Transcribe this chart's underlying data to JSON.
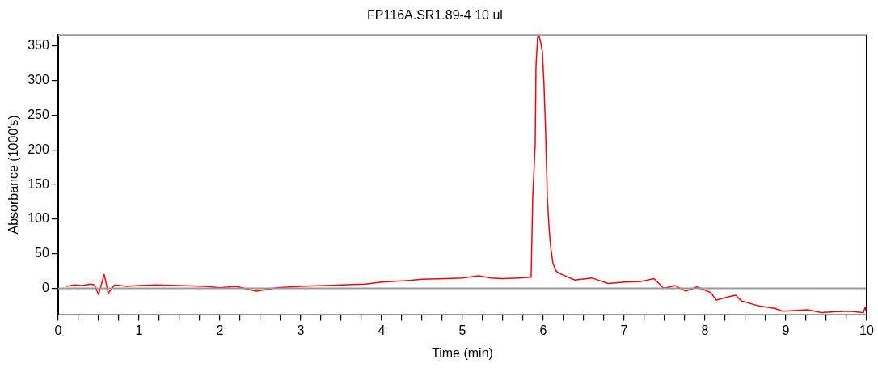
{
  "chart_data": {
    "type": "line",
    "title": "FP116A.SR1.89-4 10 ul",
    "xlabel": "Time (min)",
    "ylabel": "Absorbance (1000's)",
    "xlim": [
      0,
      10
    ],
    "ylim": [
      -37.5,
      366
    ],
    "xticks": [
      0,
      {
        "value": 0.25,
        "label": null
      },
      {
        "value": 0.5,
        "label": null
      },
      {
        "value": 0.75,
        "label": null
      },
      1,
      {
        "value": 1.25,
        "label": null
      },
      {
        "value": 1.5,
        "label": null
      },
      {
        "value": 1.75,
        "label": null
      },
      2,
      {
        "value": 2.25,
        "label": null
      },
      {
        "value": 2.5,
        "label": null
      },
      {
        "value": 2.75,
        "label": null
      },
      3,
      {
        "value": 3.25,
        "label": null
      },
      {
        "value": 3.5,
        "label": null
      },
      {
        "value": 3.75,
        "label": null
      },
      4,
      {
        "value": 4.25,
        "label": null
      },
      {
        "value": 4.5,
        "label": null
      },
      {
        "value": 4.75,
        "label": null
      },
      5,
      {
        "value": 5.25,
        "label": null
      },
      {
        "value": 5.5,
        "label": null
      },
      {
        "value": 5.75,
        "label": null
      },
      6,
      {
        "value": 6.25,
        "label": null
      },
      {
        "value": 6.5,
        "label": null
      },
      {
        "value": 6.75,
        "label": null
      },
      7,
      {
        "value": 7.25,
        "label": null
      },
      {
        "value": 7.5,
        "label": null
      },
      {
        "value": 7.75,
        "label": null
      },
      8,
      {
        "value": 8.25,
        "label": null
      },
      {
        "value": 8.5,
        "label": null
      },
      {
        "value": 8.75,
        "label": null
      },
      9,
      {
        "value": 9.25,
        "label": null
      },
      {
        "value": 9.5,
        "label": null
      },
      {
        "value": 9.75,
        "label": null
      },
      10
    ],
    "yticks": [
      0,
      50,
      100,
      150,
      200,
      250,
      300,
      350
    ],
    "grid": false,
    "legend": false,
    "marker": "none",
    "line_style": "solid",
    "ref_lines": [
      {
        "axis": "y",
        "value": 0,
        "color": "#999999"
      }
    ],
    "series": [
      {
        "color": "#ff0000",
        "x": [
          0.1,
          0.2,
          0.3,
          0.4,
          0.45,
          0.5,
          0.57,
          0.62,
          0.7,
          0.85,
          1.0,
          1.2,
          1.5,
          1.8,
          2.0,
          2.2,
          2.45,
          2.7,
          3.0,
          3.3,
          3.5,
          3.8,
          4.0,
          4.3,
          4.5,
          4.8,
          5.0,
          5.2,
          5.35,
          5.5,
          5.7,
          5.85,
          5.87,
          5.9,
          5.91,
          5.93,
          5.95,
          5.97,
          5.99,
          6.01,
          6.03,
          6.05,
          6.07,
          6.09,
          6.12,
          6.16,
          6.19,
          6.23,
          6.39,
          6.6,
          6.8,
          7.0,
          7.21,
          7.37,
          7.49,
          7.63,
          7.76,
          7.9,
          8.07,
          8.14,
          8.3,
          8.38,
          8.45,
          8.65,
          8.86,
          8.96,
          9.1,
          9.27,
          9.44,
          9.6,
          9.78,
          9.96,
          9.98,
          10.0
        ],
        "values": [
          3,
          5,
          4,
          6,
          5,
          -9,
          20,
          -7,
          5,
          3,
          4,
          5,
          4,
          3,
          1,
          3,
          -4,
          1,
          3,
          4,
          5,
          6,
          9,
          11,
          13,
          14,
          15,
          18,
          15,
          14,
          15,
          16,
          132,
          207,
          320,
          362,
          364,
          354,
          341,
          291,
          224,
          132,
          91,
          61,
          36,
          25,
          22,
          20,
          12,
          15,
          7,
          9,
          10,
          14,
          0,
          4,
          -4,
          2,
          -6,
          -17,
          -12,
          -10,
          -18,
          -25,
          -29,
          -33,
          -32,
          -31,
          -35,
          -34,
          -33,
          -35,
          -27,
          -35
        ]
      }
    ]
  }
}
